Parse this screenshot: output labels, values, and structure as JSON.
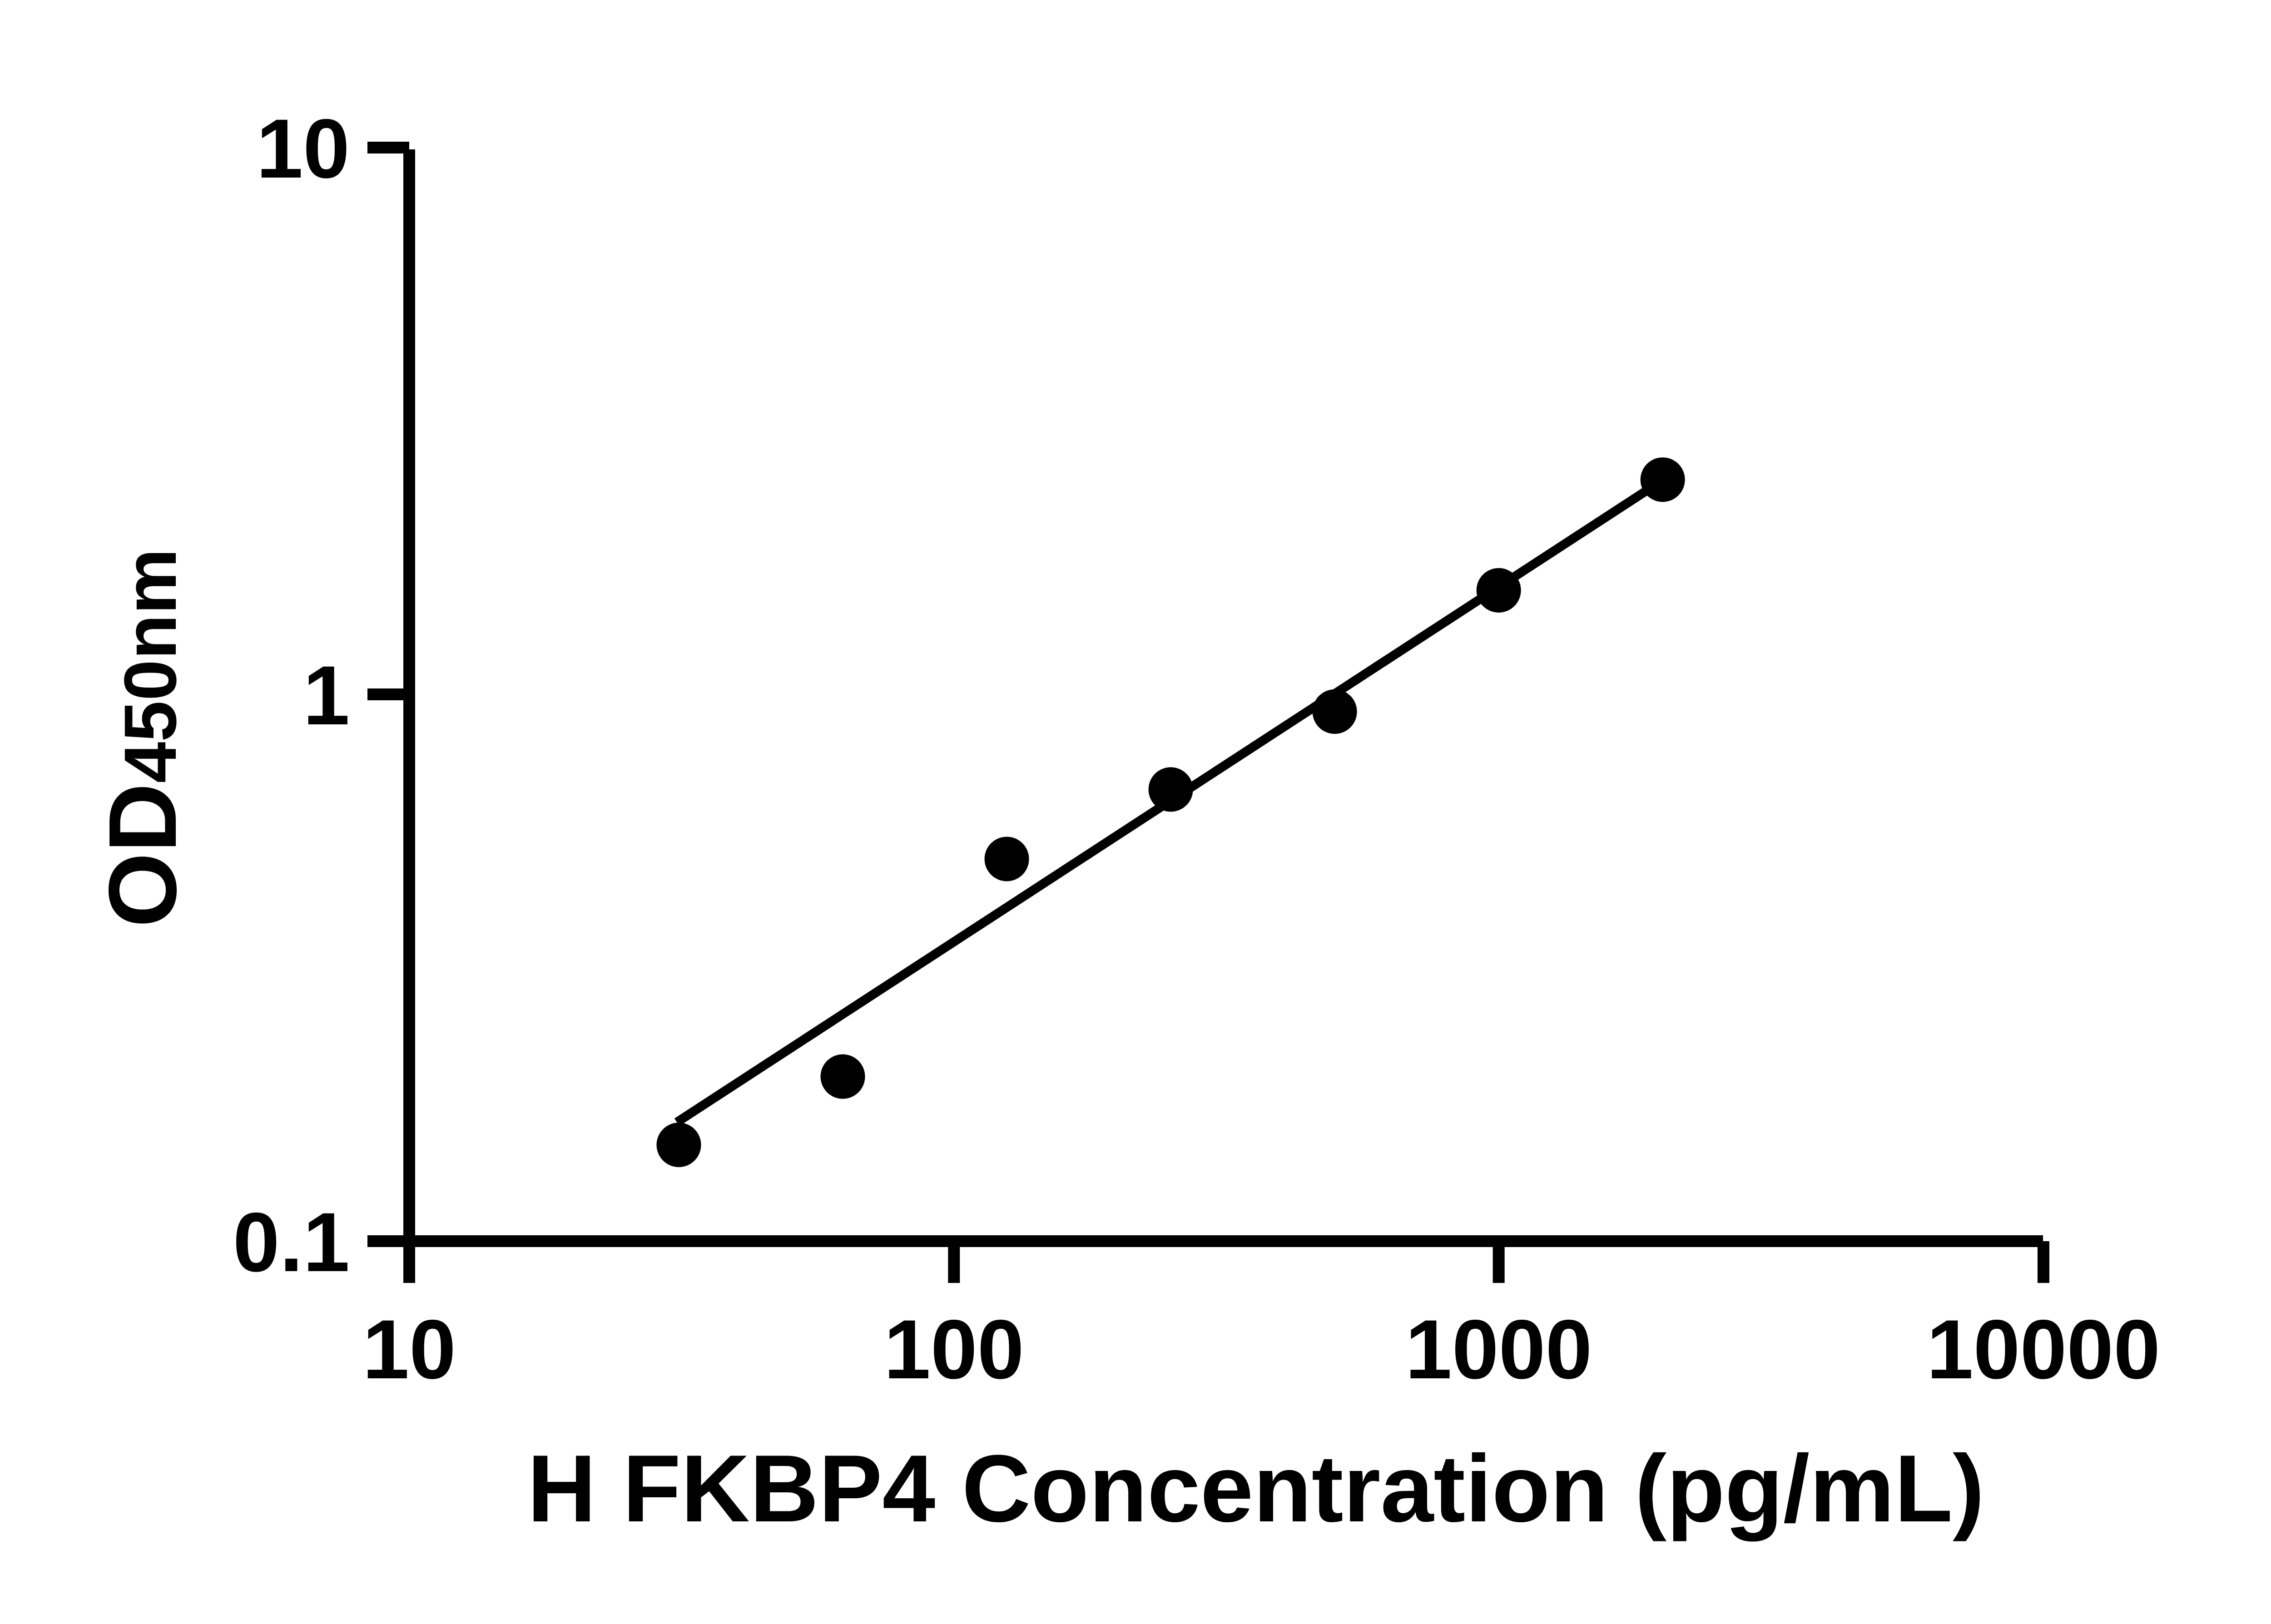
{
  "chart_data": {
    "type": "scatter",
    "title": "",
    "xlabel": "H FKBP4 Concentration (pg/mL)",
    "ylabel_main": "OD",
    "ylabel_sub": "450nm",
    "x_scale": "log",
    "y_scale": "log",
    "xlim": [
      10,
      10000
    ],
    "ylim": [
      0.1,
      10
    ],
    "grid": false,
    "legend": null,
    "x_ticks": [
      {
        "value": 10,
        "label": "10"
      },
      {
        "value": 100,
        "label": "100"
      },
      {
        "value": 1000,
        "label": "1000"
      },
      {
        "value": 10000,
        "label": "10000"
      }
    ],
    "y_ticks": [
      {
        "value": 10,
        "label": "10"
      },
      {
        "value": 1,
        "label": "1"
      },
      {
        "value": 0.1,
        "label": "0.1"
      }
    ],
    "points": [
      {
        "x": 31.25,
        "y": 0.15
      },
      {
        "x": 62.5,
        "y": 0.2
      },
      {
        "x": 125,
        "y": 0.5
      },
      {
        "x": 250,
        "y": 0.67
      },
      {
        "x": 500,
        "y": 0.93
      },
      {
        "x": 1000,
        "y": 1.55
      },
      {
        "x": 2000,
        "y": 2.47
      }
    ],
    "trendline": {
      "x1": 31,
      "y1": 0.165,
      "x2": 2000,
      "y2": 2.465
    },
    "marker_color": "#000000",
    "line_color": "#000000",
    "axis_color": "#000000"
  }
}
